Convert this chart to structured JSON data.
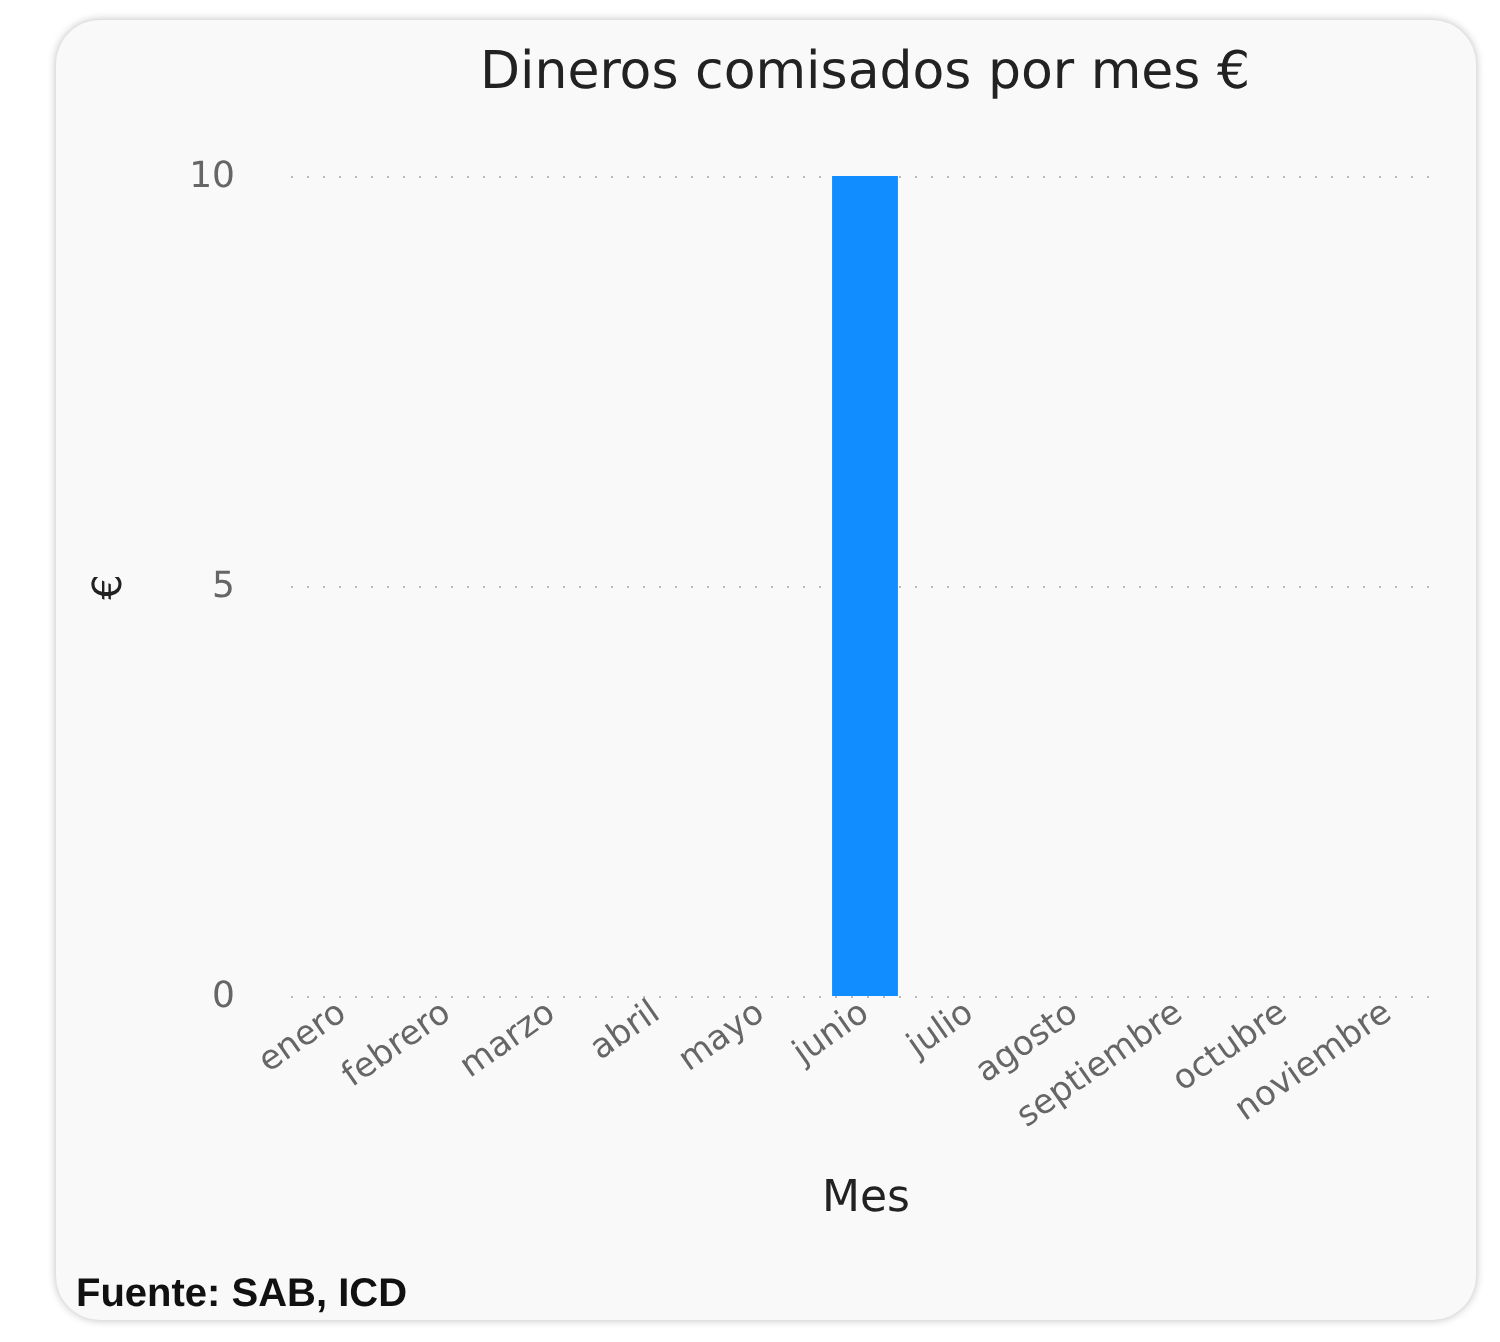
{
  "chart_data": {
    "type": "bar",
    "title": "Dineros comisados por mes €",
    "xlabel": "Mes",
    "ylabel": "€",
    "categories": [
      "enero",
      "febrero",
      "marzo",
      "abril",
      "mayo",
      "junio",
      "julio",
      "agosto",
      "septiembre",
      "octubre",
      "noviembre"
    ],
    "values": [
      null,
      null,
      null,
      null,
      null,
      10,
      null,
      null,
      null,
      null,
      null
    ],
    "color": "#118dff",
    "ylim": [
      0,
      10
    ],
    "yticks": [
      0,
      5,
      10
    ],
    "grid": "y",
    "annotations": [
      "Fuente: SAB, ICD"
    ]
  }
}
